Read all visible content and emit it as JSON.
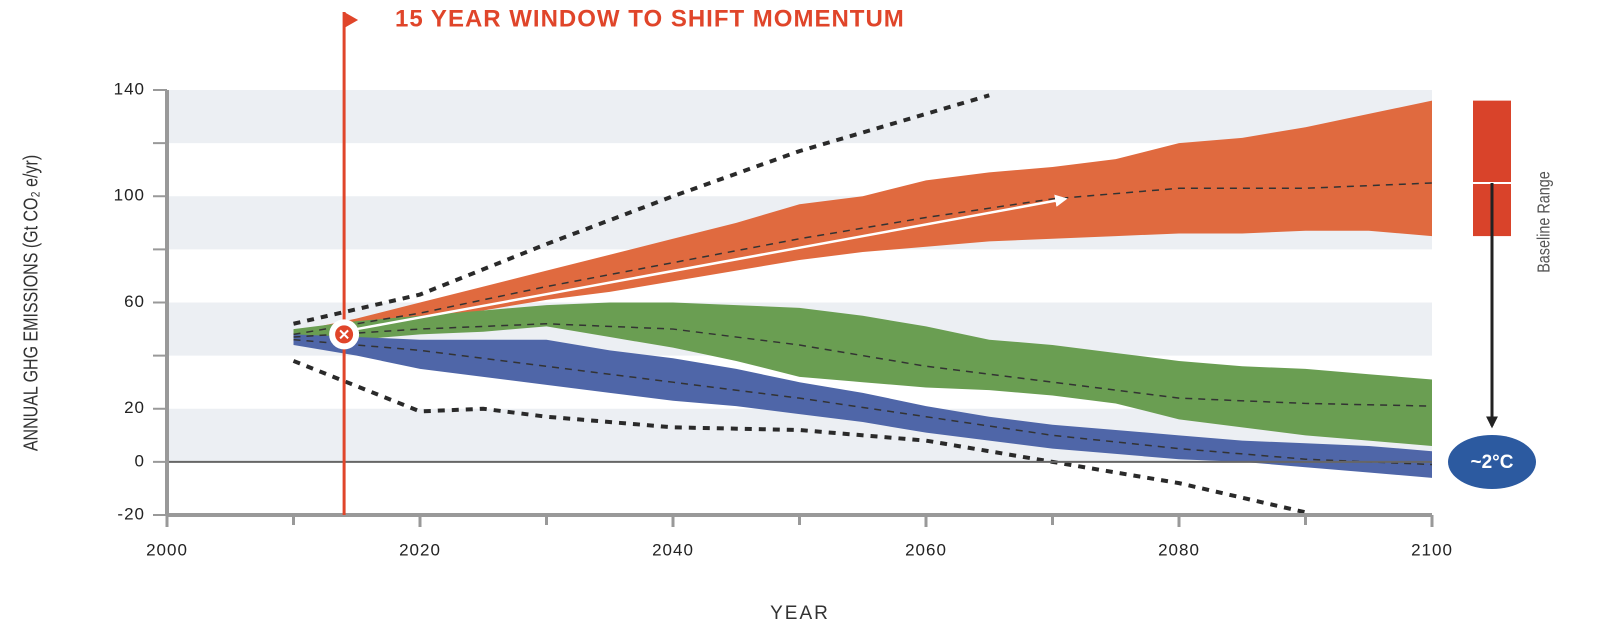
{
  "chart_data": {
    "type": "area_band",
    "title": "15 YEAR WINDOW TO SHIFT MOMENTUM",
    "xlabel": "YEAR",
    "ylabel": "ANNUAL GHG EMISSIONS (Gt CO₂ e/yr)",
    "xlim": [
      2000,
      2100
    ],
    "ylim": [
      -20,
      140
    ],
    "xticks": [
      2000,
      2020,
      2040,
      2060,
      2080,
      2100
    ],
    "xminor_ticks": [
      2010,
      2030,
      2050,
      2070,
      2090
    ],
    "yticks": [
      -20,
      0,
      20,
      60,
      100,
      140
    ],
    "yminor_ticks": [
      40,
      80,
      120
    ],
    "x": [
      2010,
      2015,
      2020,
      2025,
      2030,
      2035,
      2040,
      2045,
      2050,
      2055,
      2060,
      2065,
      2070,
      2075,
      2080,
      2085,
      2090,
      2095,
      2100
    ],
    "series": [
      {
        "color": "#e06a3f",
        "upper": [
          49,
          54,
          60,
          66,
          72,
          78,
          84,
          90,
          97,
          100,
          106,
          109,
          111,
          114,
          120,
          122,
          126,
          131,
          136
        ],
        "lower": [
          47,
          49,
          53,
          57,
          61,
          64,
          68,
          72,
          76,
          79,
          81,
          83,
          84,
          85,
          86,
          86,
          87,
          87,
          85
        ]
      },
      {
        "color": "#6a9e52",
        "upper": [
          50,
          53,
          55,
          57,
          59,
          60,
          60,
          59,
          58,
          55,
          51,
          46,
          44,
          41,
          38,
          36,
          35,
          33,
          31
        ],
        "lower": [
          44,
          46,
          48,
          49,
          51,
          47,
          43,
          38,
          32,
          30,
          28,
          27,
          25,
          22,
          16,
          13,
          10,
          8,
          6
        ]
      },
      {
        "color": "#4f66a8",
        "upper": [
          48,
          47,
          46,
          46,
          46,
          42,
          39,
          35,
          30,
          26,
          21,
          17,
          14,
          12,
          10,
          8,
          7,
          6,
          4
        ],
        "lower": [
          44,
          40,
          35,
          32,
          29,
          26,
          23,
          21,
          18,
          15,
          11,
          8,
          5,
          3,
          1,
          0,
          -2,
          -4,
          -6
        ]
      }
    ],
    "medians": [
      {
        "x": [
          2010,
          2020,
          2030,
          2040,
          2050,
          2060,
          2070,
          2080,
          2090,
          2100
        ],
        "values": [
          48,
          56,
          66,
          75,
          84,
          92,
          99,
          103,
          103,
          105
        ]
      },
      {
        "x": [
          2010,
          2020,
          2030,
          2040,
          2050,
          2060,
          2070,
          2080,
          2090,
          2100
        ],
        "values": [
          47,
          50,
          52,
          50,
          44,
          36,
          30,
          24,
          22,
          21
        ]
      },
      {
        "x": [
          2010,
          2020,
          2030,
          2040,
          2050,
          2060,
          2070,
          2080,
          2090,
          2100
        ],
        "values": [
          46,
          42,
          36,
          30,
          24,
          17,
          10,
          5,
          1,
          -1
        ]
      }
    ],
    "bounds": [
      {
        "x": [
          2010,
          2020,
          2030,
          2040,
          2050,
          2060,
          2065
        ],
        "values": [
          52,
          63,
          82,
          100,
          117,
          131,
          138
        ]
      },
      {
        "x": [
          2010,
          2020,
          2025,
          2030,
          2040,
          2050,
          2060,
          2070,
          2080,
          2090
        ],
        "values": [
          38,
          19,
          20,
          17,
          13,
          12,
          8,
          0,
          -8,
          -19
        ]
      }
    ],
    "window_start": 2014,
    "window_point": 48,
    "arrow": {
      "from": [
        2015,
        50
      ],
      "to": [
        2071,
        99
      ]
    },
    "baseline_range": {
      "label": "Baseline Range",
      "low": 85,
      "high": 136,
      "mid": 105
    },
    "target_label": "~2°C"
  }
}
